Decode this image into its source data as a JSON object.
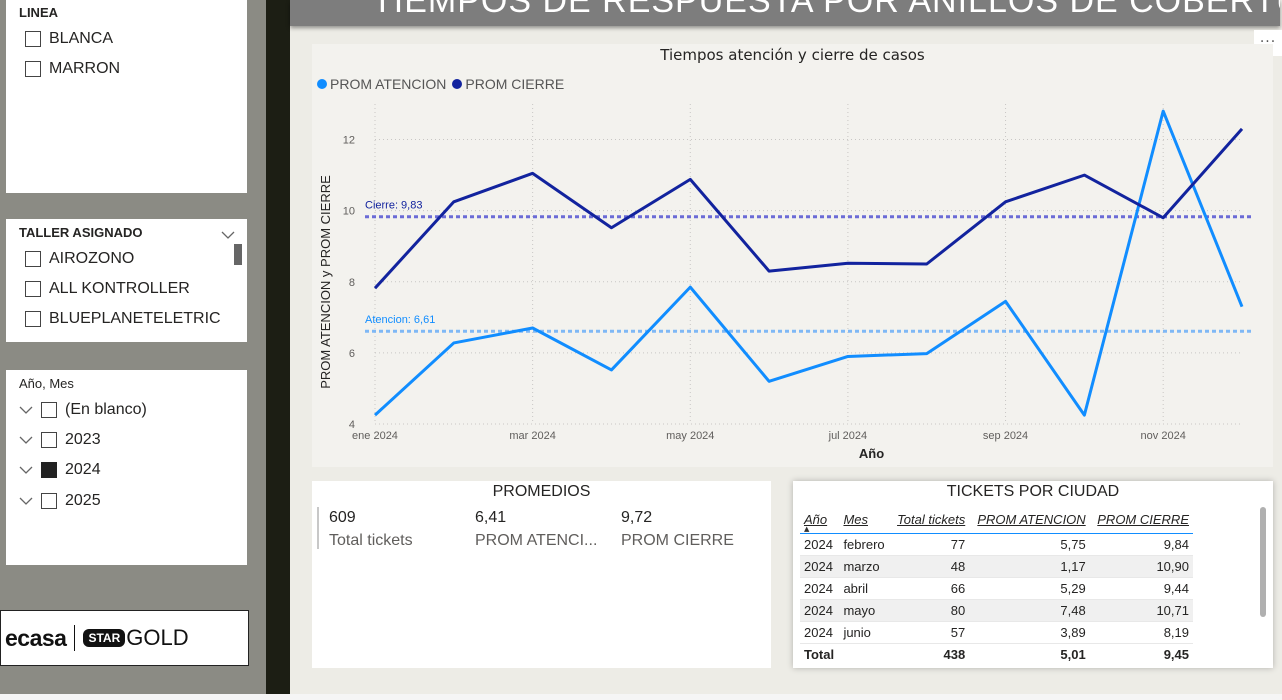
{
  "page_title": "TIEMPOS DE RESPUESTA POR ANILLOS DE COBERTURA",
  "more_options": "···",
  "slicers": {
    "linea": {
      "title": "LINEA",
      "items": [
        {
          "label": "BLANCA",
          "checked": false
        },
        {
          "label": "MARRON",
          "checked": false
        }
      ]
    },
    "taller": {
      "title": "TALLER ASIGNADO",
      "items": [
        {
          "label": "AIROZONO",
          "checked": false
        },
        {
          "label": "ALL KONTROLLER",
          "checked": false
        },
        {
          "label": "BLUEPLANETELETRIC",
          "checked": false
        }
      ]
    },
    "anio_mes": {
      "title": "Año, Mes",
      "items": [
        {
          "label": "(En blanco)",
          "checked": false
        },
        {
          "label": "2023",
          "checked": false
        },
        {
          "label": "2024",
          "checked": true
        },
        {
          "label": "2025",
          "checked": false
        }
      ]
    }
  },
  "logo": {
    "part1": "ecasa",
    "part2": "STAR",
    "part3": "GOLD"
  },
  "chart_data": {
    "type": "line",
    "title": "Tiempos atención y cierre de casos",
    "xlabel": "Año",
    "ylabel": "PROM ATENCION y PROM CIERRE",
    "x": [
      "ene 2024",
      "feb 2024",
      "mar 2024",
      "abr 2024",
      "may 2024",
      "jun 2024",
      "jul 2024",
      "ago 2024",
      "sep 2024",
      "oct 2024",
      "nov 2024",
      "dic 2024"
    ],
    "x_tick_labels": [
      "ene 2024",
      "mar 2024",
      "may 2024",
      "jul 2024",
      "sep 2024",
      "nov 2024"
    ],
    "y_ticks": [
      4,
      6,
      8,
      10,
      12
    ],
    "ylim": [
      4,
      13
    ],
    "grid": true,
    "legend": "top-left",
    "series": [
      {
        "name": "PROM ATENCION",
        "color": "#118dff",
        "values": [
          4.25,
          6.28,
          6.7,
          5.52,
          7.85,
          5.2,
          5.9,
          5.98,
          7.45,
          4.25,
          12.8,
          7.3
        ]
      },
      {
        "name": "PROM CIERRE",
        "color": "#12239e",
        "values": [
          7.82,
          10.25,
          11.05,
          9.52,
          10.88,
          8.3,
          8.52,
          8.5,
          10.25,
          11.0,
          9.8,
          12.3
        ]
      }
    ],
    "reference_lines": [
      {
        "label": "Cierre: 9,83",
        "value": 9.83,
        "color": "#6b6bd6"
      },
      {
        "label": "Atencion: 6,61",
        "value": 6.61,
        "color": "#7fb8f5"
      }
    ]
  },
  "promedios": {
    "title": "PROMEDIOS",
    "cards": [
      {
        "value": "609",
        "label": "Total tickets"
      },
      {
        "value": "6,41",
        "label": "PROM ATENCI..."
      },
      {
        "value": "9,72",
        "label": "PROM CIERRE"
      }
    ]
  },
  "tickets": {
    "title": "TICKETS POR CIUDAD",
    "columns": [
      "Año",
      "Mes",
      "Total tickets",
      "PROM ATENCION",
      "PROM CIERRE"
    ],
    "rows": [
      [
        "2024",
        "febrero",
        "77",
        "5,75",
        "9,84"
      ],
      [
        "2024",
        "marzo",
        "48",
        "1,17",
        "10,90"
      ],
      [
        "2024",
        "abril",
        "66",
        "5,29",
        "9,44"
      ],
      [
        "2024",
        "mayo",
        "80",
        "7,48",
        "10,71"
      ],
      [
        "2024",
        "junio",
        "57",
        "3,89",
        "8,19"
      ]
    ],
    "total": [
      "Total",
      "",
      "438",
      "5,01",
      "9,45"
    ]
  }
}
